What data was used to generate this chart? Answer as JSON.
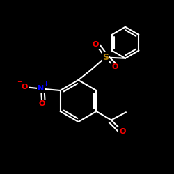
{
  "bg": "#000000",
  "wc": "#ffffff",
  "sc": "#b8860b",
  "oc": "#ff0000",
  "nc": "#0000ff",
  "lw": 1.5,
  "fig_w": 2.5,
  "fig_h": 2.5,
  "dpi": 100,
  "xlim": [
    0,
    10
  ],
  "ylim": [
    0,
    10
  ],
  "ring_r": 1.2,
  "ph_r": 0.9
}
